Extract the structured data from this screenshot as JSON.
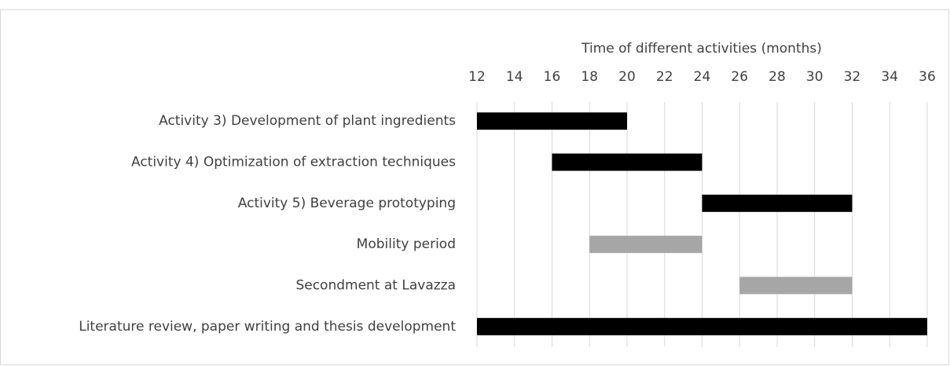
{
  "chart_data": {
    "type": "gantt",
    "xlabel": "Time of different activities (months)",
    "categories": [
      "Activity 3) Development of plant ingredients",
      "Activity 4) Optimization of extraction techniques",
      "Activity 5) Beverage prototyping",
      "Mobility period",
      "Secondment at Lavazza",
      "Literature review, paper writing and thesis development"
    ],
    "start": [
      12,
      16,
      24,
      18,
      26,
      12
    ],
    "end": [
      20,
      24,
      32,
      24,
      32,
      36
    ],
    "colors": [
      "#000000",
      "#000000",
      "#000000",
      "#a6a6a6",
      "#a6a6a6",
      "#000000"
    ],
    "xlim": [
      12,
      36
    ],
    "xticks": [
      12,
      14,
      16,
      18,
      20,
      22,
      24,
      26,
      28,
      30,
      32,
      34,
      36
    ],
    "grid": true,
    "xaxis_position": "top"
  }
}
